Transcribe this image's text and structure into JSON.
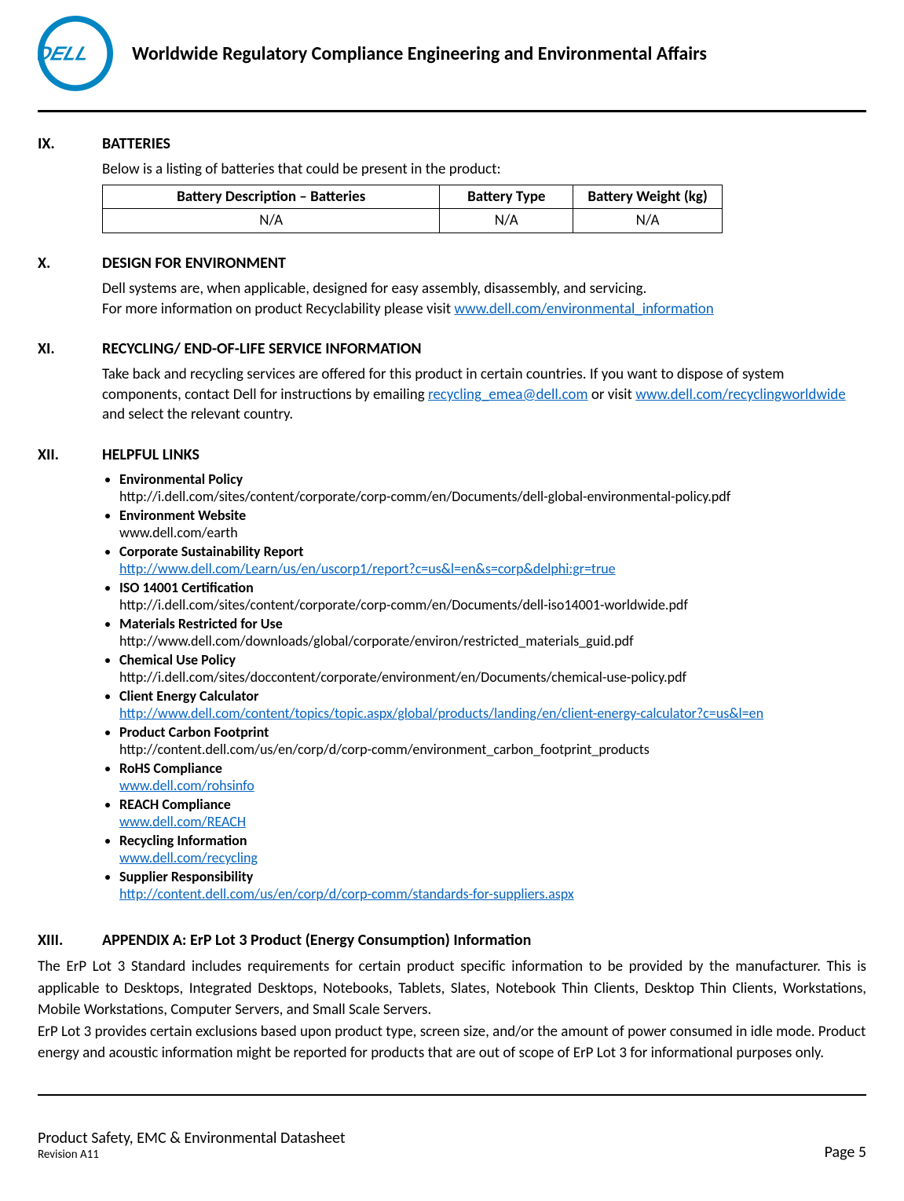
{
  "header": {
    "title": "Worldwide Regulatory Compliance Engineering and Environmental Affairs",
    "logo": {
      "ring_color": "#0085c3",
      "text": "DELL",
      "text_color": "#0085c3",
      "bg": "#ffffff"
    }
  },
  "sections": {
    "ix": {
      "num": "IX.",
      "title": "BATTERIES",
      "intro": "Below is a listing of batteries that could be present in the product:",
      "table": {
        "columns": [
          "Battery Description – Batteries",
          "Battery Type",
          "Battery Weight (kg)"
        ],
        "rows": [
          [
            "N/A",
            "N/A",
            "N/A"
          ]
        ]
      }
    },
    "x": {
      "num": "X.",
      "title": "DESIGN FOR ENVIRONMENT",
      "line1": "Dell systems are, when applicable, designed for easy assembly, disassembly, and servicing.",
      "line2a": "For more information on product Recyclability please visit ",
      "line2link": "www.dell.com/environmental_information"
    },
    "xi": {
      "num": "XI.",
      "title": "RECYCLING/ END-OF-LIFE SERVICE INFORMATION",
      "p1a": "Take back and recycling services are offered for this product in certain countries. If you want to dispose of system components, contact Dell for instructions by emailing ",
      "p1link1": "recycling_emea@dell.com",
      "p1b": " or visit ",
      "p1link2": "www.dell.com/recyclingworldwide",
      "p1c": " and select the relevant country."
    },
    "xii": {
      "num": "XII.",
      "title": "HELPFUL LINKS",
      "items": [
        {
          "title": "Environmental Policy",
          "url": "http://i.dell.com/sites/content/corporate/corp-comm/en/Documents/dell-global-environmental-policy.pdf",
          "is_link": false
        },
        {
          "title": "Environment Website",
          "url": "www.dell.com/earth",
          "is_link": false
        },
        {
          "title": "Corporate Sustainability Report",
          "url": "http://www.dell.com/Learn/us/en/uscorp1/report?c=us&l=en&s=corp&delphi:gr=true",
          "is_link": true
        },
        {
          "title": "ISO 14001 Certification",
          "url": "http://i.dell.com/sites/content/corporate/corp-comm/en/Documents/dell-iso14001-worldwide.pdf",
          "is_link": false
        },
        {
          "title": "Materials Restricted for Use",
          "url": "http://www.dell.com/downloads/global/corporate/environ/restricted_materials_guid.pdf",
          "is_link": false
        },
        {
          "title": "Chemical Use Policy",
          "url": "http://i.dell.com/sites/doccontent/corporate/environment/en/Documents/chemical-use-policy.pdf",
          "is_link": false
        },
        {
          "title": "Client Energy Calculator",
          "url": "http://www.dell.com/content/topics/topic.aspx/global/products/landing/en/client-energy-calculator?c=us&l=en",
          "is_link": true
        },
        {
          "title": "Product Carbon Footprint",
          "url": "http://content.dell.com/us/en/corp/d/corp-comm/environment_carbon_footprint_products",
          "is_link": false
        },
        {
          "title": "RoHS Compliance",
          "url": "www.dell.com/rohsinfo",
          "is_link": true
        },
        {
          "title": "REACH Compliance",
          "url": "www.dell.com/REACH",
          "is_link": true
        },
        {
          "title": "Recycling Information",
          "url": "www.dell.com/recycling",
          "is_link": true
        },
        {
          "title": "Supplier Responsibility",
          "url": "http://content.dell.com/us/en/corp/d/corp-comm/standards-for-suppliers.aspx",
          "is_link": true
        }
      ]
    },
    "xiii": {
      "num": "XIII.",
      "title": "APPENDIX A:   ErP Lot 3 Product (Energy Consumption) Information",
      "p1": "The ErP Lot 3 Standard includes requirements for certain product specific information to be provided by the manufacturer.  This is applicable to Desktops, Integrated Desktops, Notebooks, Tablets, Slates, Notebook Thin Clients, Desktop Thin Clients, Workstations, Mobile Workstations, Computer Servers, and Small Scale Servers.",
      "p2": "ErP Lot 3 provides certain exclusions based upon product type, screen size, and/or the amount of power consumed in idle mode. Product energy and acoustic information might be reported for products that are out of scope of ErP Lot 3 for informational purposes only."
    }
  },
  "footer": {
    "title": "Product Safety, EMC & Environmental Datasheet",
    "revision": "Revision A11",
    "page": "Page 5"
  },
  "colors": {
    "link": "#0563c1",
    "text": "#000000",
    "bg": "#ffffff"
  }
}
